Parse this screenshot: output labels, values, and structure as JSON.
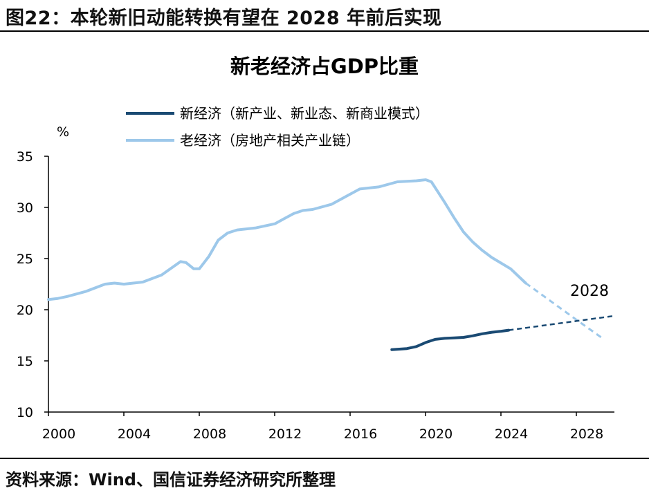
{
  "figure_title": "图22：本轮新旧动能转换有望在 2028 年前后实现",
  "source": "资料来源：Wind、国信证券经济研究所整理",
  "colors": {
    "new_economy": "#1a4a73",
    "old_economy": "#9dc8ea"
  },
  "chart_data": {
    "type": "line",
    "title": "新老经济占GDP比重",
    "ylabel": "%",
    "xlabel": "",
    "xlim": [
      2000,
      2030
    ],
    "ylim": [
      10,
      35
    ],
    "x_ticks": [
      "2000",
      "2004",
      "2008",
      "2012",
      "2016",
      "2020",
      "2024",
      "2028"
    ],
    "y_ticks": [
      "35",
      "30",
      "25",
      "20",
      "15",
      "10"
    ],
    "grid": false,
    "legend": "top-left",
    "annotation": "2028",
    "series": [
      {
        "name": "新经济（新产业、新业态、新商业模式）",
        "color": "#1a4a73",
        "actual": [
          [
            2018.2,
            16.1
          ],
          [
            2019.0,
            16.2
          ],
          [
            2019.5,
            16.4
          ],
          [
            2020.0,
            16.8
          ],
          [
            2020.5,
            17.1
          ],
          [
            2021.0,
            17.2
          ],
          [
            2021.5,
            17.25
          ],
          [
            2022.0,
            17.3
          ],
          [
            2022.5,
            17.45
          ],
          [
            2023.0,
            17.65
          ],
          [
            2023.5,
            17.8
          ],
          [
            2024.0,
            17.9
          ],
          [
            2024.4,
            18.0
          ]
        ],
        "projection": [
          [
            2024.4,
            18.0
          ],
          [
            2026.0,
            18.4
          ],
          [
            2028.0,
            18.9
          ],
          [
            2030.0,
            19.4
          ]
        ]
      },
      {
        "name": "老经济（房地产相关产业链）",
        "color": "#9dc8ea",
        "actual": [
          [
            2000.0,
            21.0
          ],
          [
            2000.5,
            21.1
          ],
          [
            2001.0,
            21.3
          ],
          [
            2002.0,
            21.8
          ],
          [
            2003.0,
            22.5
          ],
          [
            2003.5,
            22.6
          ],
          [
            2004.0,
            22.5
          ],
          [
            2005.0,
            22.7
          ],
          [
            2006.0,
            23.4
          ],
          [
            2007.0,
            24.7
          ],
          [
            2007.3,
            24.6
          ],
          [
            2007.7,
            24.0
          ],
          [
            2008.0,
            24.0
          ],
          [
            2008.5,
            25.2
          ],
          [
            2009.0,
            26.8
          ],
          [
            2009.5,
            27.5
          ],
          [
            2010.0,
            27.8
          ],
          [
            2011.0,
            28.0
          ],
          [
            2012.0,
            28.4
          ],
          [
            2012.5,
            28.9
          ],
          [
            2013.0,
            29.4
          ],
          [
            2013.5,
            29.7
          ],
          [
            2014.0,
            29.8
          ],
          [
            2015.0,
            30.3
          ],
          [
            2016.0,
            31.3
          ],
          [
            2016.5,
            31.8
          ],
          [
            2017.5,
            32.0
          ],
          [
            2018.5,
            32.5
          ],
          [
            2019.5,
            32.6
          ],
          [
            2020.0,
            32.7
          ],
          [
            2020.3,
            32.5
          ],
          [
            2021.0,
            30.5
          ],
          [
            2021.5,
            29.0
          ],
          [
            2022.0,
            27.6
          ],
          [
            2022.5,
            26.6
          ],
          [
            2023.0,
            25.8
          ],
          [
            2023.5,
            25.1
          ],
          [
            2024.5,
            24.0
          ],
          [
            2025.3,
            22.6
          ]
        ],
        "projection": [
          [
            2025.3,
            22.6
          ],
          [
            2026.5,
            21.0
          ],
          [
            2028.0,
            19.0
          ],
          [
            2029.3,
            17.3
          ]
        ]
      }
    ]
  }
}
